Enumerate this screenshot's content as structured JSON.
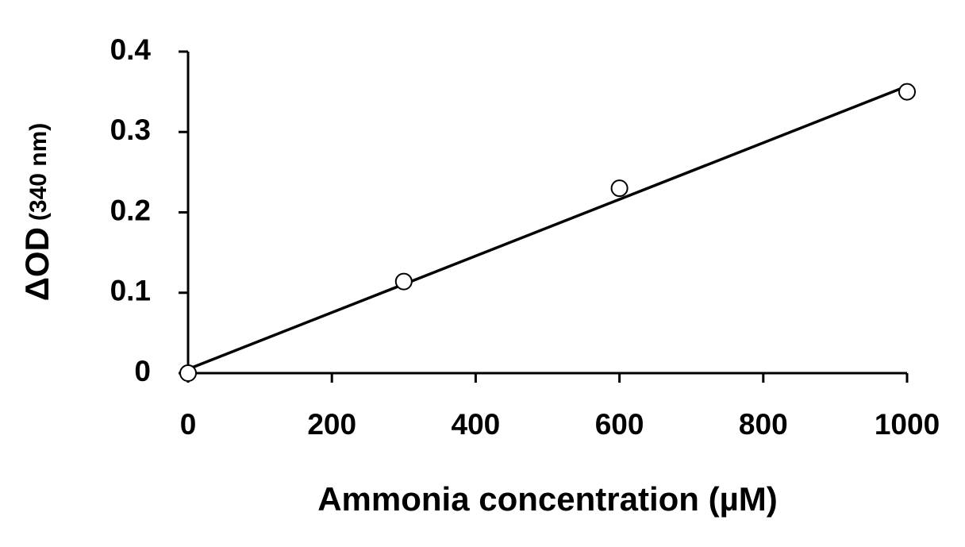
{
  "chart_data": {
    "type": "scatter",
    "x_label": "Ammonia concentration (µM)",
    "y_label": "ΔOD",
    "y_label_unit": "(340 nm)",
    "x": [
      0,
      300,
      600,
      1000
    ],
    "values": [
      0,
      0.114,
      0.23,
      0.35
    ],
    "color": "#000000",
    "fit": {
      "x": [
        0,
        1000
      ],
      "values": [
        0.005,
        0.357
      ]
    },
    "xlim": [
      0,
      1000
    ],
    "xticks": [
      0,
      200,
      400,
      600,
      800,
      1000
    ],
    "ylim": [
      0,
      0.4
    ],
    "yticks": [
      0,
      0.1,
      0.2,
      0.3,
      0.4
    ],
    "grid": false
  }
}
